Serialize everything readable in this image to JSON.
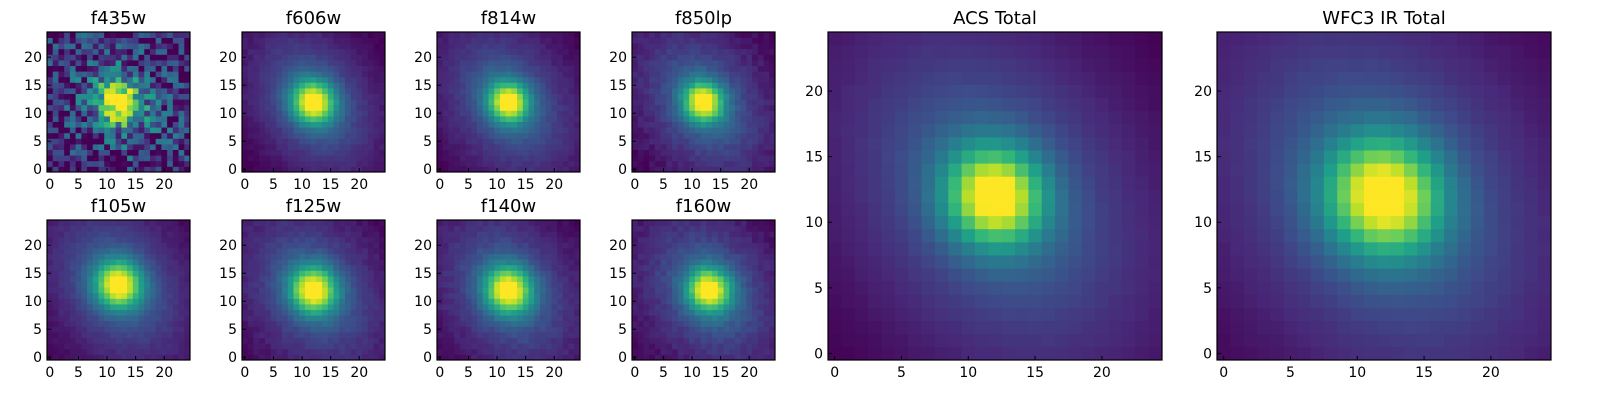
{
  "chart_data": [
    {
      "type": "heatmap",
      "title": "f435w",
      "ticks": [
        0,
        5,
        10,
        15,
        20
      ],
      "xlim": [
        0,
        25
      ],
      "ylim": [
        0,
        25
      ],
      "grid": 25,
      "center": [
        12,
        12
      ],
      "peak_radius": 2.6,
      "halo_scale": 9,
      "noise": 0.55,
      "tilt": 0.45
    },
    {
      "type": "heatmap",
      "title": "f606w",
      "ticks": [
        0,
        5,
        10,
        15,
        20
      ],
      "xlim": [
        0,
        25
      ],
      "ylim": [
        0,
        25
      ],
      "grid": 25,
      "center": [
        12,
        12
      ],
      "peak_radius": 2.6,
      "halo_scale": 8,
      "noise": 0.04,
      "tilt": 0.45
    },
    {
      "type": "heatmap",
      "title": "f814w",
      "ticks": [
        0,
        5,
        10,
        15,
        20
      ],
      "xlim": [
        0,
        25
      ],
      "ylim": [
        0,
        25
      ],
      "grid": 25,
      "center": [
        12,
        12
      ],
      "peak_radius": 2.4,
      "halo_scale": 8.5,
      "noise": 0.04,
      "tilt": 0.45
    },
    {
      "type": "heatmap",
      "title": "f850lp",
      "ticks": [
        0,
        5,
        10,
        15,
        20
      ],
      "xlim": [
        0,
        25
      ],
      "ylim": [
        0,
        25
      ],
      "grid": 25,
      "center": [
        12,
        12
      ],
      "peak_radius": 2.4,
      "halo_scale": 8.5,
      "noise": 0.06,
      "tilt": 0.45
    },
    {
      "type": "heatmap",
      "title": "f105w",
      "ticks": [
        0,
        5,
        10,
        15,
        20
      ],
      "xlim": [
        0,
        25
      ],
      "ylim": [
        0,
        25
      ],
      "grid": 25,
      "center": [
        12,
        13
      ],
      "peak_radius": 2.8,
      "halo_scale": 9,
      "noise": 0.04,
      "tilt": 0.4
    },
    {
      "type": "heatmap",
      "title": "f125w",
      "ticks": [
        0,
        5,
        10,
        15,
        20
      ],
      "xlim": [
        0,
        25
      ],
      "ylim": [
        0,
        25
      ],
      "grid": 25,
      "center": [
        12,
        12
      ],
      "peak_radius": 2.8,
      "halo_scale": 9,
      "noise": 0.05,
      "tilt": 0.4
    },
    {
      "type": "heatmap",
      "title": "f140w",
      "ticks": [
        0,
        5,
        10,
        15,
        20
      ],
      "xlim": [
        0,
        25
      ],
      "ylim": [
        0,
        25
      ],
      "grid": 25,
      "center": [
        12,
        12
      ],
      "peak_radius": 2.8,
      "halo_scale": 9,
      "noise": 0.05,
      "tilt": 0.4
    },
    {
      "type": "heatmap",
      "title": "f160w",
      "ticks": [
        0,
        5,
        10,
        15,
        20
      ],
      "xlim": [
        0,
        25
      ],
      "ylim": [
        0,
        25
      ],
      "grid": 25,
      "center": [
        13,
        12
      ],
      "peak_radius": 2.6,
      "halo_scale": 9,
      "noise": 0.06,
      "tilt": 0.4
    },
    {
      "type": "heatmap",
      "title": "ACS Total",
      "ticks": [
        0,
        5,
        10,
        15,
        20
      ],
      "xlim": [
        0,
        25
      ],
      "ylim": [
        0,
        25
      ],
      "grid": 25,
      "center": [
        12,
        12
      ],
      "peak_radius": 2.5,
      "halo_scale": 8.5,
      "noise": 0.01,
      "tilt": 0.45
    },
    {
      "type": "heatmap",
      "title": "WFC3 IR Total",
      "ticks": [
        0,
        5,
        10,
        15,
        20
      ],
      "xlim": [
        0,
        25
      ],
      "ylim": [
        0,
        25
      ],
      "grid": 25,
      "center": [
        12,
        12
      ],
      "peak_radius": 3.0,
      "halo_scale": 9.5,
      "noise": 0.01,
      "tilt": 0.4
    }
  ],
  "colormap": [
    "#440154",
    "#482878",
    "#3e4989",
    "#31688e",
    "#26828e",
    "#1f9e89",
    "#35b779",
    "#6ece58",
    "#b5de2b",
    "#fde725"
  ]
}
